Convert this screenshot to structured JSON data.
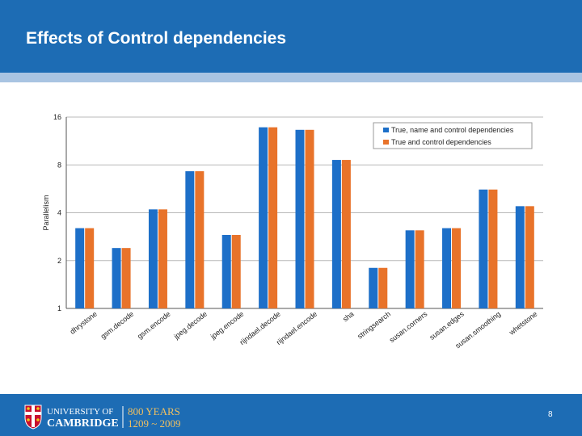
{
  "slide": {
    "title": "Effects of Control dependencies",
    "page_number": "8"
  },
  "logo": {
    "university_line1": "UNIVERSITY OF",
    "university_line2": "CAMBRIDGE",
    "anniversary_line1": "800 YEARS",
    "anniversary_line2": "1209 ~ 2009"
  },
  "chart_data": {
    "type": "bar",
    "scale": "log2",
    "ylabel": "Parallelism",
    "xlabel": "",
    "ylim": [
      1,
      16
    ],
    "yticks": [
      1,
      2,
      4,
      8,
      16
    ],
    "grid": true,
    "legend_position": "top-right",
    "categories": [
      "dhrystone",
      "gsm.decode",
      "gsm.encode",
      "jpeg.decode",
      "jpeg.encode",
      "rijndael.decode",
      "rijndael.encode",
      "sha",
      "stringsearch",
      "susan.corners",
      "susan.edges",
      "susan.smoothing",
      "whetstone"
    ],
    "series": [
      {
        "name": "True, name and control dependencies",
        "color": "#1d6fc8",
        "values": [
          3.2,
          2.4,
          4.2,
          7.3,
          2.9,
          13.8,
          13.3,
          8.6,
          1.8,
          3.1,
          3.2,
          5.6,
          4.4
        ]
      },
      {
        "name": "True and control dependencies",
        "color": "#e8732a",
        "values": [
          3.2,
          2.4,
          4.2,
          7.3,
          2.9,
          13.8,
          13.3,
          8.6,
          1.8,
          3.1,
          3.2,
          5.6,
          4.4
        ]
      }
    ]
  }
}
